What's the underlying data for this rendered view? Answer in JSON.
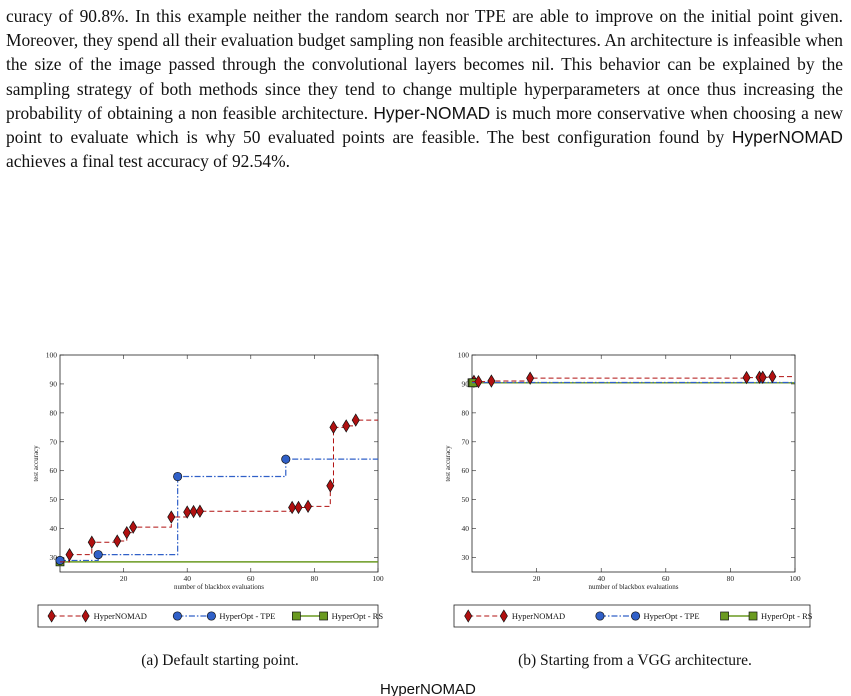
{
  "paragraph": {
    "t1": "curacy of 90.8%. In this example neither the random search nor TPE are able to improve on the initial point given. Moreover, they spend all their evaluation budget sampling non feasible architectures. An architecture is infeasible when the size of the image passed through the convolutional layers becomes nil. This behavior can be explained by the sampling strategy of both methods since they tend to change multiple hyperparameters at once thus increasing the probability of obtaining a non feasible architecture. ",
    "name1": "Hyper-NOMAD",
    "t2": " is much more conservative when choosing a new point to evaluate which is why 50 evaluated points are feasible. The best configuration found by ",
    "name2": "HyperNOMAD",
    "t3": " achieves a final test accuracy of 92.54%."
  },
  "captions": {
    "a": "(a) Default starting point.",
    "b": "(b) Starting from a VGG architecture."
  },
  "cut_text": "HyperNOMAD",
  "colors": {
    "hypernomad": "#b01010",
    "tpe": "#3060c8",
    "rs": "#6a9a20"
  },
  "chart_data": [
    {
      "type": "line",
      "xlabel": "number of blackbox evaluations",
      "ylabel": "test accuracy",
      "xlim": [
        0,
        100
      ],
      "ylim": [
        25,
        100
      ],
      "xticks": [
        20,
        40,
        60,
        80,
        100
      ],
      "yticks": [
        30,
        40,
        50,
        60,
        70,
        80,
        90,
        100
      ],
      "legend": "below",
      "series": [
        {
          "name": "HyperNOMAD",
          "step": true,
          "points": [
            [
              0,
              28.5
            ],
            [
              3,
              31
            ],
            [
              10,
              35.3
            ],
            [
              18,
              35.7
            ],
            [
              21,
              38.6
            ],
            [
              23,
              40.5
            ],
            [
              35,
              44
            ],
            [
              40,
              45.7
            ],
            [
              42,
              45.9
            ],
            [
              44,
              46
            ],
            [
              73,
              47.3
            ],
            [
              75,
              47.3
            ],
            [
              78,
              47.7
            ],
            [
              85,
              54.8
            ],
            [
              86,
              75
            ],
            [
              90,
              75.5
            ],
            [
              93,
              77.5
            ],
            [
              100,
              77.5
            ]
          ]
        },
        {
          "name": "HyperOpt - TPE",
          "step": true,
          "points": [
            [
              0,
              29
            ],
            [
              12,
              31
            ],
            [
              37,
              58
            ],
            [
              71,
              64
            ],
            [
              100,
              64
            ]
          ]
        },
        {
          "name": "HyperOpt - RS",
          "step": true,
          "points": [
            [
              0,
              28.5
            ],
            [
              100,
              28.5
            ]
          ]
        }
      ]
    },
    {
      "type": "line",
      "xlabel": "number of blackbox evaluations",
      "ylabel": "test accuracy",
      "xlim": [
        0,
        100
      ],
      "ylim": [
        25,
        100
      ],
      "xticks": [
        20,
        40,
        60,
        80,
        100
      ],
      "yticks": [
        30,
        40,
        50,
        60,
        70,
        80,
        90,
        100
      ],
      "legend": "below",
      "series": [
        {
          "name": "HyperNOMAD",
          "step": true,
          "points": [
            [
              0,
              90.8
            ],
            [
              2,
              90.8
            ],
            [
              6,
              91
            ],
            [
              18,
              92
            ],
            [
              85,
              92.2
            ],
            [
              89,
              92.3
            ],
            [
              90,
              92.3
            ],
            [
              93,
              92.54
            ],
            [
              100,
              92.54
            ]
          ]
        },
        {
          "name": "HyperOpt - TPE",
          "step": true,
          "points": [
            [
              0,
              90.5
            ],
            [
              100,
              90.5
            ]
          ]
        },
        {
          "name": "HyperOpt - RS",
          "step": true,
          "points": [
            [
              0,
              90.4
            ],
            [
              100,
              90.4
            ]
          ]
        }
      ]
    }
  ]
}
